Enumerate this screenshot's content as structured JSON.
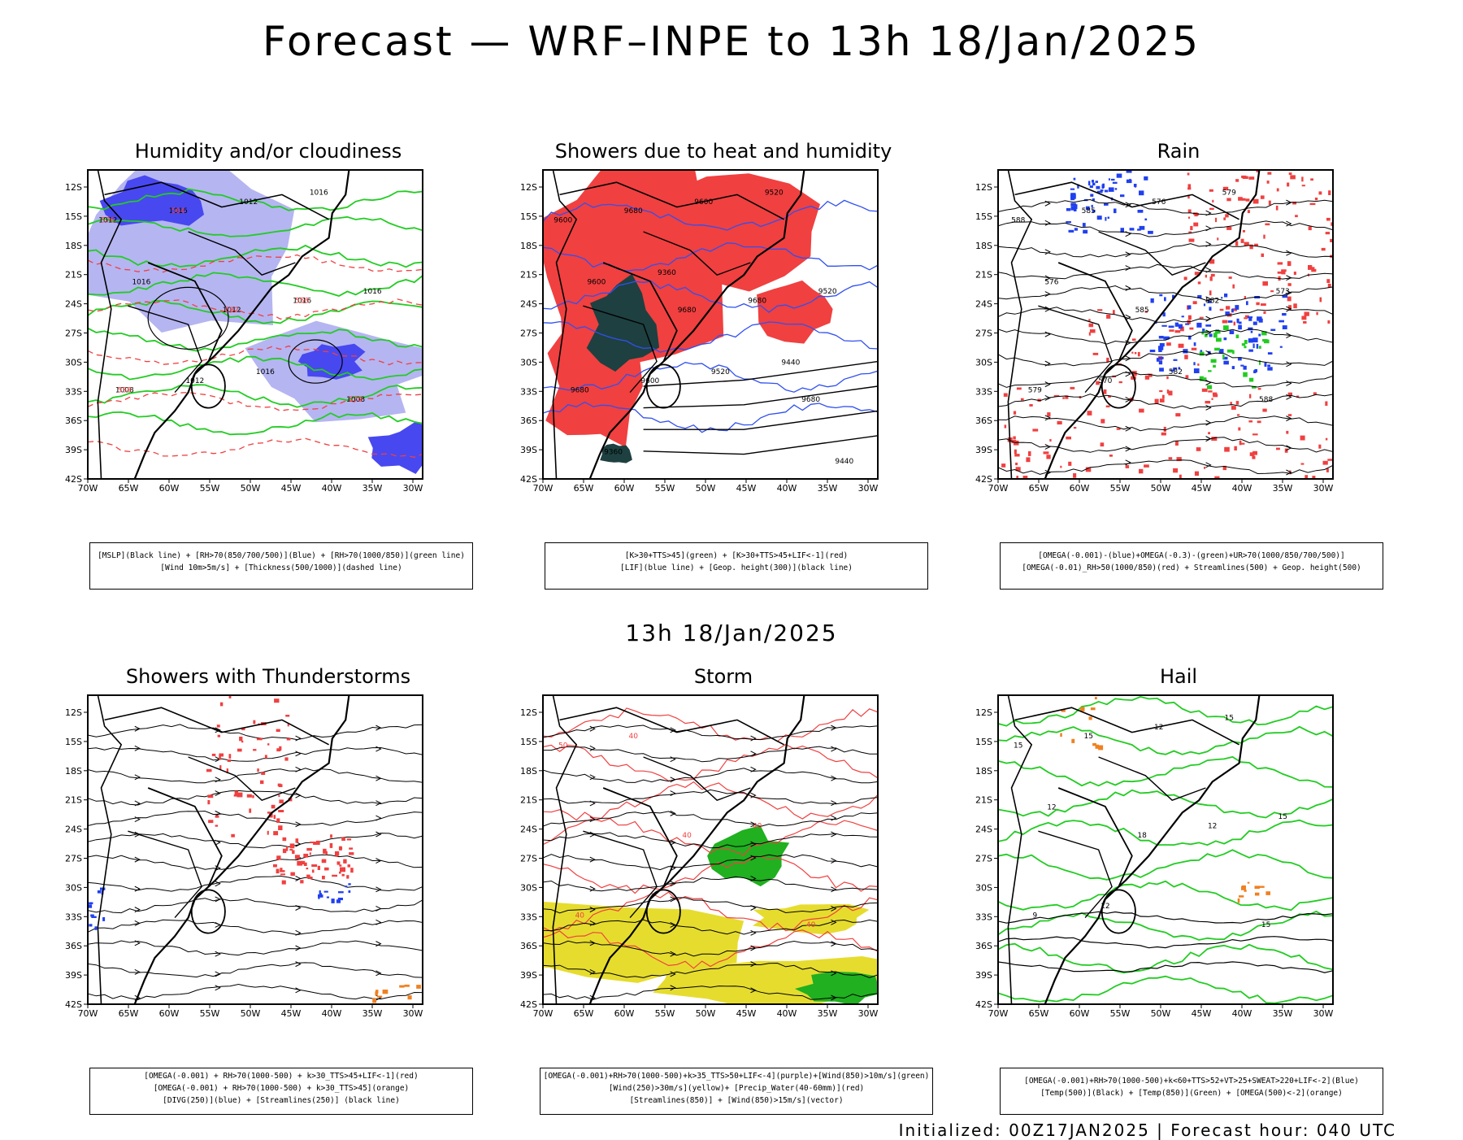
{
  "title": "Forecast — WRF–INPE to 13h 18/Jan/2025",
  "subtitle": "13h 18/Jan/2025",
  "footer": "Initialized: 00Z17JAN2025 | Forecast hour: 040 UTC",
  "axes": {
    "lat_labels": [
      "12S",
      "15S",
      "18S",
      "21S",
      "24S",
      "27S",
      "30S",
      "33S",
      "36S",
      "39S",
      "42S"
    ],
    "lon_labels": [
      "70W",
      "65W",
      "60W",
      "55W",
      "50W",
      "45W",
      "40W",
      "35W",
      "30W"
    ]
  },
  "panels": [
    {
      "id": "humidity",
      "title": "Humidity and/or cloudiness",
      "legend": [
        "[MSLP](Black line) + [RH>70(850/700/500)](Blue) + [RH>70(1000/850)](green line)",
        "[Wind 10m>5m/s] + [Thickness(500/1000)](dashed line)"
      ],
      "contour_labels": [
        "1012",
        "1012",
        "1008",
        "1016",
        "1016",
        "1008",
        "1012",
        "1016",
        "1012",
        "1016",
        "1016",
        "1016",
        "576",
        "582",
        "570",
        "564",
        "558",
        "558"
      ]
    },
    {
      "id": "showers_heat",
      "title": "Showers due to heat and humidity",
      "legend": [
        "[K>30+TTS>45](green) + [K>30+TTS>45+LIF<-1](red)",
        "[LIF](blue line) + [Geop. height(300)](black line)"
      ],
      "contour_labels": [
        "9600",
        "9680",
        "9680",
        "9680",
        "9680",
        "9680",
        "9600",
        "9520",
        "9600",
        "9520",
        "9600",
        "9520",
        "9440",
        "9360",
        "9440",
        "9360"
      ]
    },
    {
      "id": "rain",
      "title": "Rain",
      "legend": [
        "[OMEGA(-0.001)-(blue)+OMEGA(-0.3)-(green)+UR>70(1000/850/700/500)]",
        "[OMEGA(-0.01)_RH>50(1000/850)(red) + Streamlines(500) + Geop. height(500)"
      ],
      "contour_labels": [
        "588",
        "585",
        "588",
        "585",
        "582",
        "579",
        "576",
        "573",
        "570",
        "579",
        "576",
        "582"
      ]
    },
    {
      "id": "thunderstorms",
      "title": "Showers with Thunderstorms",
      "legend": [
        "[OMEGA(-0.001) + RH>70(1000-500) + k>30_TTS>45+LIF<-1](red)",
        "[OMEGA(-0.001) + RH>70(1000-500) + k>30_TTS>45](orange)",
        "[DIVG(250)](blue) + [Streamlines(250)] (black line)"
      ],
      "contour_labels": []
    },
    {
      "id": "storm",
      "title": "Storm",
      "legend": [
        "[OMEGA(-0.001)+RH>70(1000-500)+k>35_TTS>50+LIF<-4](purple)+[Wind(850)>10m/s](green)",
        "[Wind(250)>30m/s](yellow)+ [Precip_Water(40-60mm)](red)",
        "[Streamlines(850)] + [Wind(850)>15m/s](vector)"
      ],
      "contour_labels": [
        "50",
        "40",
        "40",
        "40",
        "40",
        "40"
      ]
    },
    {
      "id": "hail",
      "title": "Hail",
      "legend": [
        "[OMEGA(-0.001)+RH>70(1000-500)+k<60+TTS>52+VT>25+SWEAT>220+LIF<-2](Blue)",
        "[Temp(500)](Black) + [Temp(850)](Green) + [OMEGA(500)<-2](orange)"
      ],
      "contour_labels": [
        "15",
        "18",
        "15",
        "15",
        "12",
        "9",
        "12",
        "15",
        "12",
        "15",
        "12"
      ]
    }
  ],
  "colors": {
    "rh_blue": "#a8a8f0",
    "rh_blue_dark": "#4848f0",
    "green_line": "#22cc22",
    "red": "#f04040",
    "dark_teal": "#1e4040",
    "blue_line": "#3050f0",
    "yellow": "#e6dc2e",
    "orange": "#f08020"
  }
}
